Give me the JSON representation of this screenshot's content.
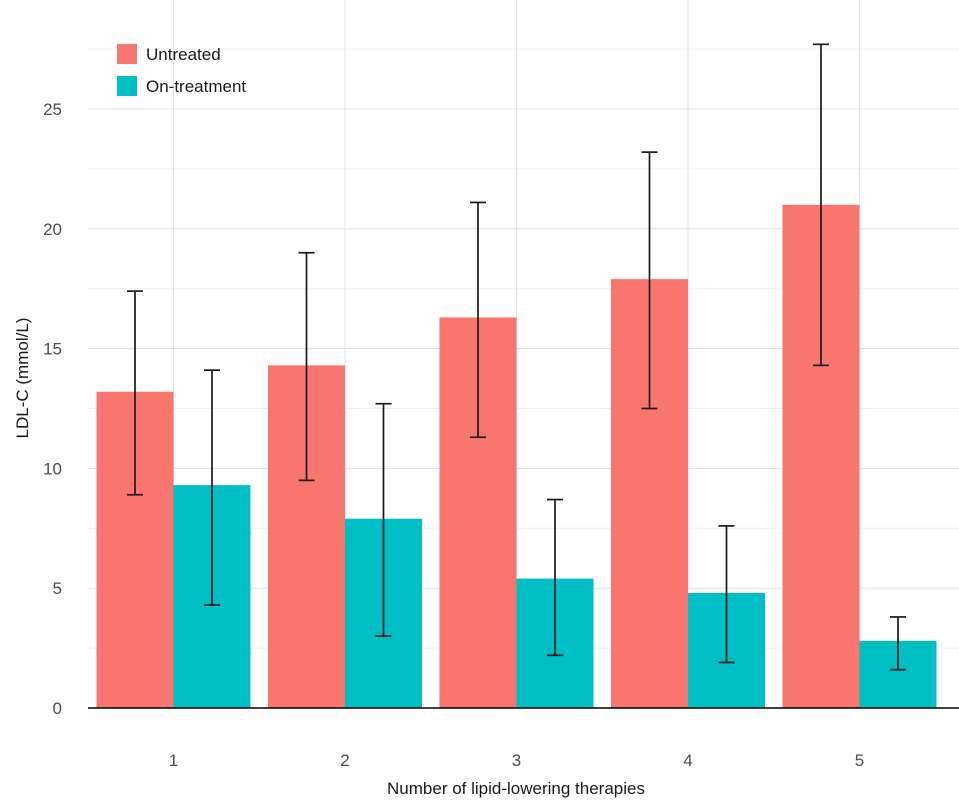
{
  "chart_data": {
    "type": "bar",
    "xlabel": "Number of lipid-lowering therapies",
    "ylabel": "LDL-C (mmol/L)",
    "categories": [
      "1",
      "2",
      "3",
      "4",
      "5"
    ],
    "ylim": [
      0,
      28.2
    ],
    "yticks": [
      0,
      5,
      10,
      15,
      20,
      25
    ],
    "grid": true,
    "legend_position": "top-left",
    "series": [
      {
        "name": "Untreated",
        "color": "#F8766D",
        "values": [
          13.2,
          14.3,
          16.3,
          17.9,
          21.0
        ],
        "error_low": [
          8.9,
          9.5,
          11.3,
          12.5,
          14.3
        ],
        "error_high": [
          17.4,
          19.0,
          21.1,
          23.2,
          27.7
        ]
      },
      {
        "name": "On-treatment",
        "color": "#00BFC4",
        "values": [
          9.3,
          7.9,
          5.4,
          4.8,
          2.8
        ],
        "error_low": [
          4.3,
          3.0,
          2.2,
          1.9,
          1.6
        ],
        "error_high": [
          14.1,
          12.7,
          8.7,
          7.6,
          3.8
        ]
      }
    ]
  }
}
